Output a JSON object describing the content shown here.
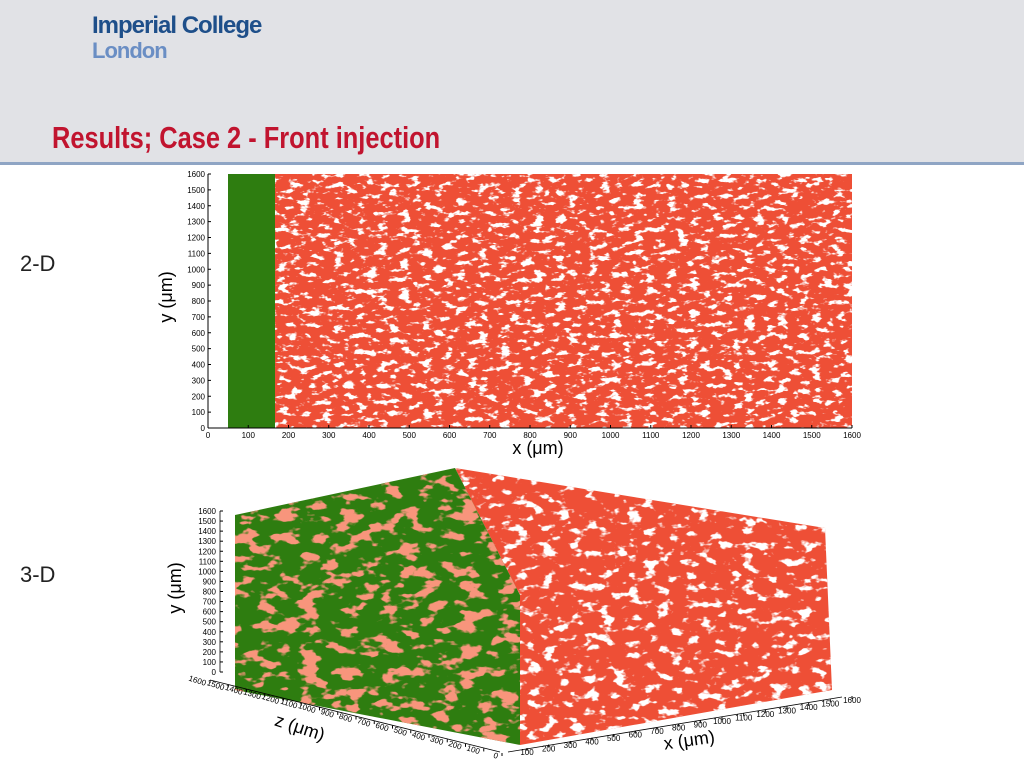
{
  "header": {
    "logo_line1": "Imperial College",
    "logo_line2": "London",
    "title": "Results; Case 2 - Front injection"
  },
  "panels": [
    {
      "label": "2-D",
      "x_axis_label": "x (μm)",
      "y_axis_label": "y (μm)",
      "xticks": [
        0,
        100,
        200,
        300,
        400,
        500,
        600,
        700,
        800,
        900,
        1000,
        1100,
        1200,
        1300,
        1400,
        1500,
        1600
      ],
      "yticks": [
        0,
        100,
        200,
        300,
        400,
        500,
        600,
        700,
        800,
        900,
        1000,
        1100,
        1200,
        1300,
        1400,
        1500,
        1600
      ]
    },
    {
      "label": "3-D",
      "x_axis_label": "x (μm)",
      "y_axis_label": "y (μm)",
      "z_axis_label": "z (μm)",
      "xticks": [
        100,
        200,
        300,
        400,
        500,
        600,
        700,
        800,
        900,
        1000,
        1100,
        1200,
        1300,
        1400,
        1500,
        1600
      ],
      "yticks": [
        0,
        100,
        200,
        300,
        400,
        500,
        600,
        700,
        800,
        900,
        1000,
        1100,
        1200,
        1300,
        1400,
        1500,
        1600
      ],
      "zticks": [
        1600,
        1500,
        1400,
        1300,
        1200,
        1100,
        1000,
        900,
        800,
        700,
        600,
        500,
        400,
        300,
        200,
        100,
        0
      ]
    }
  ]
}
